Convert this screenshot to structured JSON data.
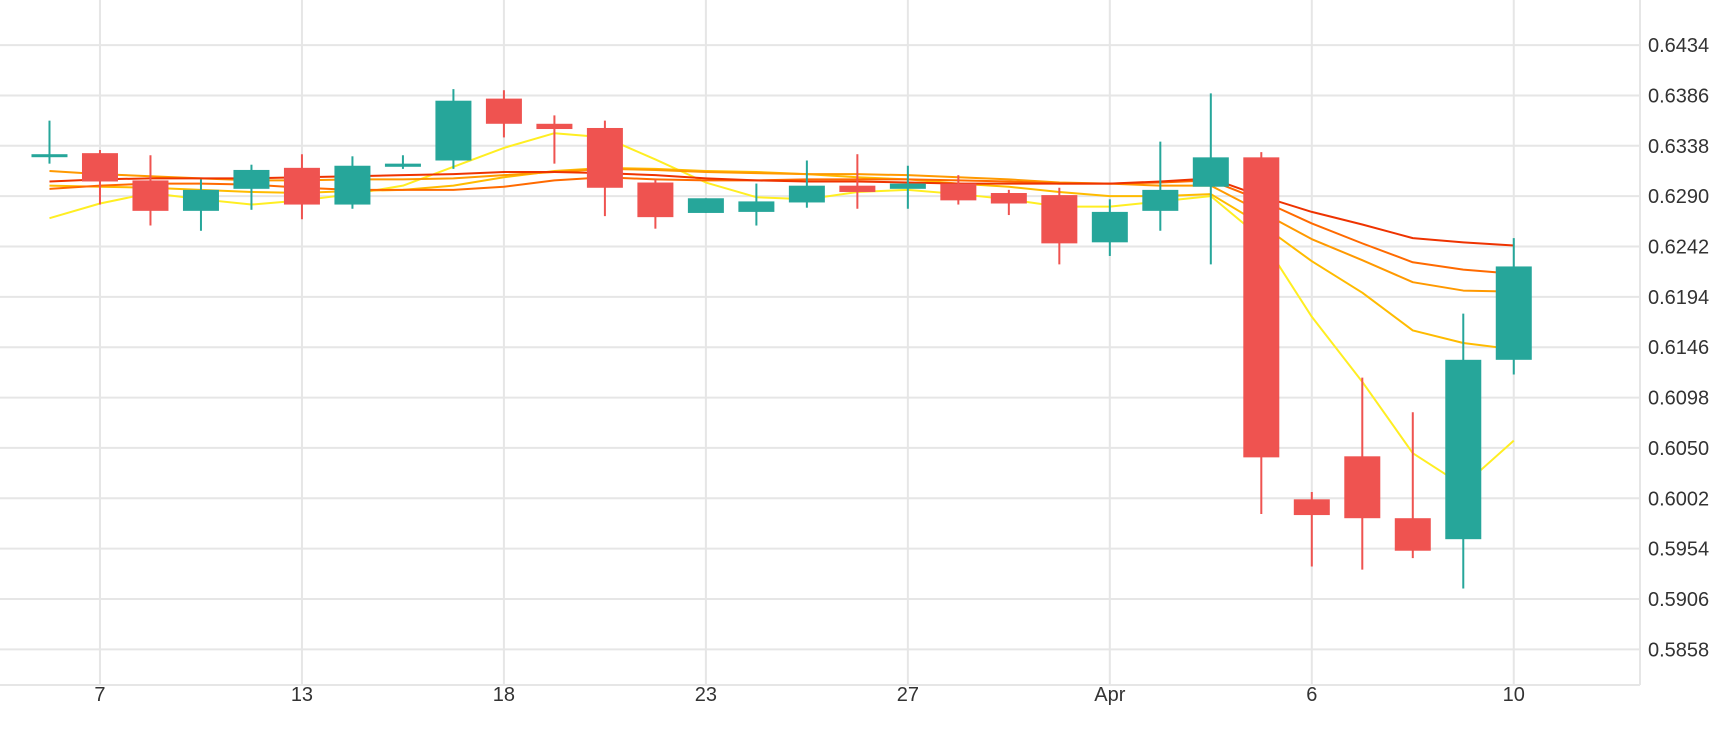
{
  "chart_data": {
    "type": "candlestick",
    "x_ticks": [
      "7",
      "13",
      "18",
      "23",
      "27",
      "Apr",
      "6",
      "10"
    ],
    "y_ticks": [
      "0.6434",
      "0.6386",
      "0.6338",
      "0.6290",
      "0.6242",
      "0.6194",
      "0.6146",
      "0.6098",
      "0.6050",
      "0.6002",
      "0.5954",
      "0.5906",
      "0.5858"
    ],
    "ylim": [
      0.5824,
      0.6477
    ],
    "grid": true,
    "colors": {
      "up": "#26a69a",
      "down": "#ef5350",
      "grid": "#e6e6e6",
      "axis_text": "#333333"
    },
    "tick_index": [
      1,
      5,
      9,
      13,
      17,
      21,
      25,
      29
    ],
    "x_index_range": [
      -0.98,
      31.5
    ],
    "candles": [
      {
        "o": 0.633,
        "h": 0.6362,
        "l": 0.6321,
        "c": 0.633
      },
      {
        "o": 0.6331,
        "h": 0.6334,
        "l": 0.6282,
        "c": 0.6304
      },
      {
        "o": 0.6305,
        "h": 0.6329,
        "l": 0.6262,
        "c": 0.6276
      },
      {
        "o": 0.6276,
        "h": 0.6306,
        "l": 0.6257,
        "c": 0.6296
      },
      {
        "o": 0.6297,
        "h": 0.632,
        "l": 0.6277,
        "c": 0.6315
      },
      {
        "o": 0.6317,
        "h": 0.633,
        "l": 0.6268,
        "c": 0.6282
      },
      {
        "o": 0.6282,
        "h": 0.6328,
        "l": 0.6278,
        "c": 0.6319
      },
      {
        "o": 0.6318,
        "h": 0.6329,
        "l": 0.6316,
        "c": 0.6321
      },
      {
        "o": 0.6324,
        "h": 0.6392,
        "l": 0.6316,
        "c": 0.6381
      },
      {
        "o": 0.6383,
        "h": 0.6391,
        "l": 0.6346,
        "c": 0.6359
      },
      {
        "o": 0.6359,
        "h": 0.6367,
        "l": 0.6321,
        "c": 0.6354
      },
      {
        "o": 0.6355,
        "h": 0.6362,
        "l": 0.6271,
        "c": 0.6298
      },
      {
        "o": 0.6303,
        "h": 0.6306,
        "l": 0.6259,
        "c": 0.627
      },
      {
        "o": 0.6274,
        "h": 0.6288,
        "l": 0.6274,
        "c": 0.6288
      },
      {
        "o": 0.6275,
        "h": 0.6302,
        "l": 0.6262,
        "c": 0.6285
      },
      {
        "o": 0.6284,
        "h": 0.6324,
        "l": 0.6279,
        "c": 0.63
      },
      {
        "o": 0.63,
        "h": 0.633,
        "l": 0.6278,
        "c": 0.6294
      },
      {
        "o": 0.6297,
        "h": 0.6319,
        "l": 0.6278,
        "c": 0.6302
      },
      {
        "o": 0.6302,
        "h": 0.631,
        "l": 0.6282,
        "c": 0.6286
      },
      {
        "o": 0.6293,
        "h": 0.6296,
        "l": 0.6272,
        "c": 0.6283
      },
      {
        "o": 0.6291,
        "h": 0.6298,
        "l": 0.6225,
        "c": 0.6245
      },
      {
        "o": 0.6246,
        "h": 0.6287,
        "l": 0.6233,
        "c": 0.6275
      },
      {
        "o": 0.6276,
        "h": 0.6342,
        "l": 0.6257,
        "c": 0.6296
      },
      {
        "o": 0.6299,
        "h": 0.6388,
        "l": 0.6225,
        "c": 0.6327
      },
      {
        "o": 0.6327,
        "h": 0.6332,
        "l": 0.5987,
        "c": 0.6041
      },
      {
        "o": 0.6001,
        "h": 0.6008,
        "l": 0.5937,
        "c": 0.5986
      },
      {
        "o": 0.6042,
        "h": 0.6117,
        "l": 0.5934,
        "c": 0.5983
      },
      {
        "o": 0.5983,
        "h": 0.6084,
        "l": 0.5945,
        "c": 0.5952
      },
      {
        "o": 0.5963,
        "h": 0.6178,
        "l": 0.5916,
        "c": 0.6134
      },
      {
        "o": 0.6134,
        "h": 0.625,
        "l": 0.612,
        "c": 0.6223
      }
    ],
    "moving_averages": [
      {
        "color": "#ffee22",
        "values": [
          0.6269,
          0.6283,
          0.6293,
          0.6287,
          0.6282,
          0.6286,
          0.6292,
          0.63,
          0.6318,
          0.6336,
          0.635,
          0.6346,
          0.6325,
          0.6303,
          0.6289,
          0.6287,
          0.6294,
          0.6296,
          0.6292,
          0.6287,
          0.628,
          0.628,
          0.6285,
          0.629,
          0.625,
          0.6175,
          0.6113,
          0.6045,
          0.6014,
          0.6057
        ]
      },
      {
        "color": "#ffbb00",
        "values": [
          0.63,
          0.6299,
          0.6298,
          0.6296,
          0.6294,
          0.6293,
          0.6295,
          0.6296,
          0.63,
          0.6308,
          0.6314,
          0.6317,
          0.6316,
          0.6314,
          0.6313,
          0.6311,
          0.6308,
          0.6306,
          0.6302,
          0.6299,
          0.6294,
          0.629,
          0.629,
          0.6292,
          0.6263,
          0.6228,
          0.6198,
          0.6162,
          0.615,
          0.6144
        ]
      },
      {
        "color": "#ff9900",
        "values": [
          0.6314,
          0.6311,
          0.6309,
          0.6307,
          0.6305,
          0.6305,
          0.6306,
          0.6306,
          0.6307,
          0.631,
          0.6313,
          0.6316,
          0.6315,
          0.6313,
          0.6312,
          0.6311,
          0.6311,
          0.631,
          0.6308,
          0.6306,
          0.6303,
          0.6302,
          0.63,
          0.63,
          0.6275,
          0.6249,
          0.6229,
          0.6208,
          0.62,
          0.6199
        ]
      },
      {
        "color": "#ff6a00",
        "values": [
          0.6297,
          0.63,
          0.6302,
          0.6302,
          0.6301,
          0.6298,
          0.6296,
          0.6296,
          0.6296,
          0.6299,
          0.6305,
          0.6308,
          0.6306,
          0.6305,
          0.6305,
          0.6306,
          0.6306,
          0.6306,
          0.6305,
          0.6304,
          0.6302,
          0.6302,
          0.6303,
          0.6305,
          0.6286,
          0.6264,
          0.6245,
          0.6227,
          0.622,
          0.6216
        ]
      },
      {
        "color": "#ee3300",
        "values": [
          0.6304,
          0.6306,
          0.6307,
          0.6307,
          0.6307,
          0.6308,
          0.6309,
          0.631,
          0.6311,
          0.6313,
          0.6313,
          0.6312,
          0.631,
          0.6307,
          0.6305,
          0.6304,
          0.6304,
          0.6303,
          0.6302,
          0.6302,
          0.6302,
          0.6302,
          0.6304,
          0.6307,
          0.629,
          0.6275,
          0.6263,
          0.625,
          0.6246,
          0.6243
        ]
      }
    ]
  }
}
